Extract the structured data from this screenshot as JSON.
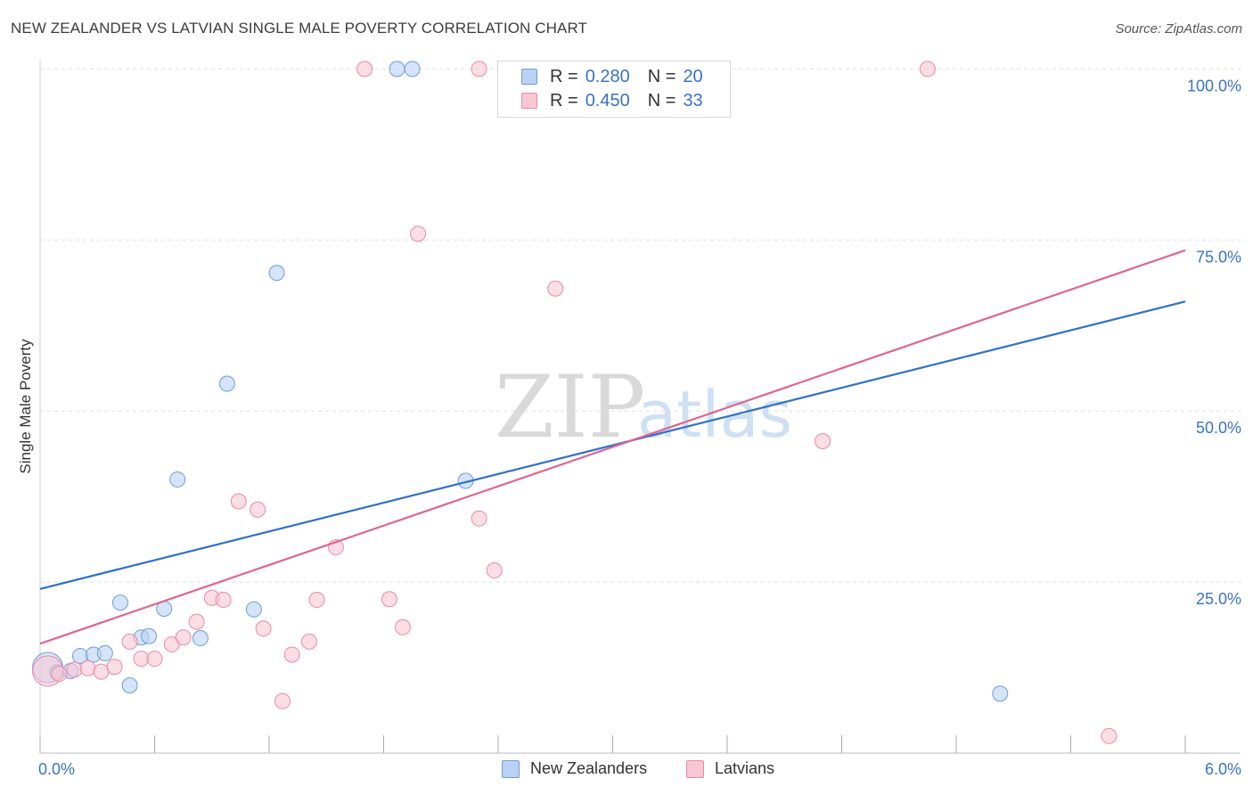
{
  "header": {
    "title": "NEW ZEALANDER VS LATVIAN SINGLE MALE POVERTY CORRELATION CHART",
    "source": "Source: ZipAtlas.com"
  },
  "legend": {
    "rows": [
      {
        "r_label": "R =",
        "r_value": "0.280",
        "n_label": "N =",
        "n_value": "20"
      },
      {
        "r_label": "R =",
        "r_value": "0.450",
        "n_label": "N =",
        "n_value": "33"
      }
    ]
  },
  "bottom_legend": {
    "items": [
      {
        "label": "New Zealanders"
      },
      {
        "label": "Latvians"
      }
    ]
  },
  "colors": {
    "nz_fill": "#b9d2f3",
    "nz_stroke": "#6f9bd8",
    "nz_line": "#2f6fcc",
    "lv_fill": "#f9c6d4",
    "lv_stroke": "#e88aa6",
    "lv_line": "#e0648e",
    "tick_label": "#3a72c8",
    "grid": "#dddddd",
    "watermark": "#d9d9d9"
  },
  "chart_data": {
    "type": "scatter",
    "title": "NEW ZEALANDER VS LATVIAN SINGLE MALE POVERTY CORRELATION CHART",
    "xlabel": "",
    "ylabel": "Single Male Poverty",
    "xlim": [
      0,
      6.0
    ],
    "ylim": [
      0,
      102
    ],
    "x_tick_labels": [
      "0.0%",
      "6.0%"
    ],
    "y_ticks": [
      25,
      50,
      75,
      100
    ],
    "y_tick_labels": [
      "25.0%",
      "50.0%",
      "75.0%",
      "100.0%"
    ],
    "watermark": {
      "zip": "ZIP",
      "atlas": "atlas"
    },
    "series": [
      {
        "name": "New Zealanders",
        "r": 0.28,
        "n": 20,
        "points": [
          {
            "x": 0.04,
            "y": 12.5,
            "big": true
          },
          {
            "x": 0.09,
            "y": 11.8
          },
          {
            "x": 0.16,
            "y": 12.0
          },
          {
            "x": 0.21,
            "y": 14.2
          },
          {
            "x": 0.28,
            "y": 14.4
          },
          {
            "x": 0.34,
            "y": 14.6
          },
          {
            "x": 0.42,
            "y": 22.0
          },
          {
            "x": 0.47,
            "y": 9.9
          },
          {
            "x": 0.53,
            "y": 16.9
          },
          {
            "x": 0.57,
            "y": 17.1
          },
          {
            "x": 0.65,
            "y": 21.1
          },
          {
            "x": 0.72,
            "y": 40.0
          },
          {
            "x": 0.84,
            "y": 16.8
          },
          {
            "x": 0.98,
            "y": 54.0
          },
          {
            "x": 1.12,
            "y": 21.0
          },
          {
            "x": 1.24,
            "y": 70.2
          },
          {
            "x": 1.87,
            "y": 100.0
          },
          {
            "x": 1.95,
            "y": 100.0
          },
          {
            "x": 2.23,
            "y": 39.8
          },
          {
            "x": 5.03,
            "y": 8.7
          }
        ],
        "trend": {
          "x": [
            0,
            6.0
          ],
          "y": [
            24.0,
            66.0
          ]
        }
      },
      {
        "name": "Latvians",
        "r": 0.45,
        "n": 33,
        "points": [
          {
            "x": 0.04,
            "y": 12.0,
            "big": true
          },
          {
            "x": 0.1,
            "y": 11.6
          },
          {
            "x": 0.18,
            "y": 12.2
          },
          {
            "x": 0.25,
            "y": 12.4
          },
          {
            "x": 0.32,
            "y": 11.9
          },
          {
            "x": 0.39,
            "y": 12.6
          },
          {
            "x": 0.47,
            "y": 16.3
          },
          {
            "x": 0.53,
            "y": 13.8
          },
          {
            "x": 0.6,
            "y": 13.8
          },
          {
            "x": 0.69,
            "y": 15.9
          },
          {
            "x": 0.75,
            "y": 16.9
          },
          {
            "x": 0.82,
            "y": 19.2
          },
          {
            "x": 0.9,
            "y": 22.7
          },
          {
            "x": 0.96,
            "y": 22.4
          },
          {
            "x": 1.04,
            "y": 36.8
          },
          {
            "x": 1.14,
            "y": 35.6
          },
          {
            "x": 1.17,
            "y": 18.2
          },
          {
            "x": 1.27,
            "y": 7.6
          },
          {
            "x": 1.32,
            "y": 14.4
          },
          {
            "x": 1.41,
            "y": 16.3
          },
          {
            "x": 1.45,
            "y": 22.4
          },
          {
            "x": 1.55,
            "y": 30.1
          },
          {
            "x": 1.7,
            "y": 100.0
          },
          {
            "x": 1.83,
            "y": 22.5
          },
          {
            "x": 1.9,
            "y": 18.4
          },
          {
            "x": 1.98,
            "y": 75.9
          },
          {
            "x": 2.3,
            "y": 34.3
          },
          {
            "x": 2.38,
            "y": 26.7
          },
          {
            "x": 2.3,
            "y": 100.0
          },
          {
            "x": 2.7,
            "y": 67.9
          },
          {
            "x": 4.1,
            "y": 45.6
          },
          {
            "x": 4.65,
            "y": 100.0
          },
          {
            "x": 5.6,
            "y": 2.5
          }
        ],
        "trend": {
          "x": [
            0,
            6.0
          ],
          "y": [
            16.0,
            73.5
          ]
        }
      }
    ]
  }
}
